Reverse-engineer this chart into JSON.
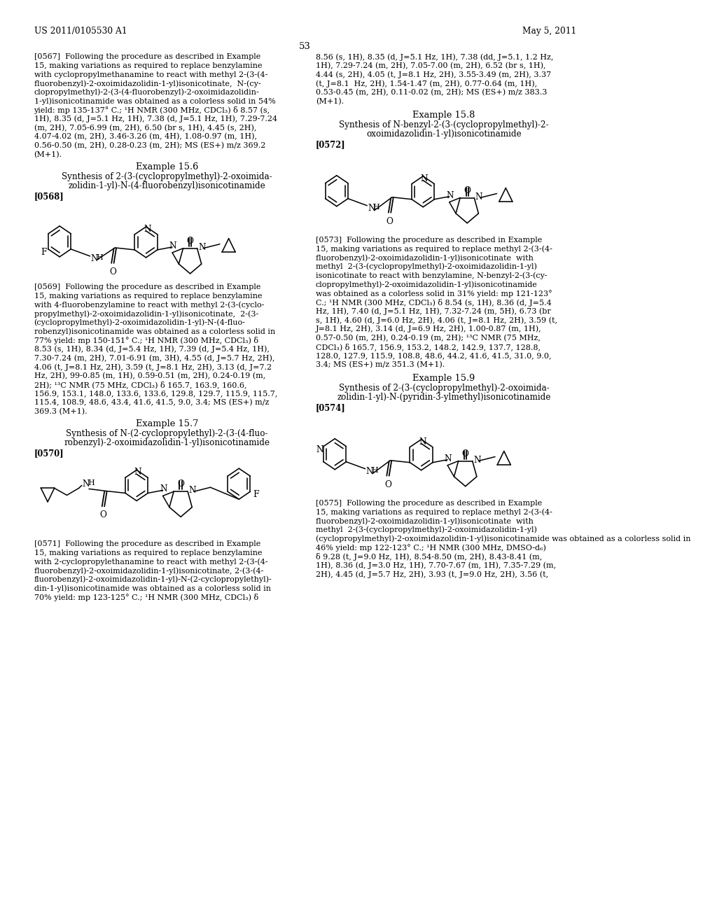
{
  "bg": "#ffffff",
  "header_left": "US 2011/0105530 A1",
  "header_right": "May 5, 2011",
  "page_num": "53"
}
